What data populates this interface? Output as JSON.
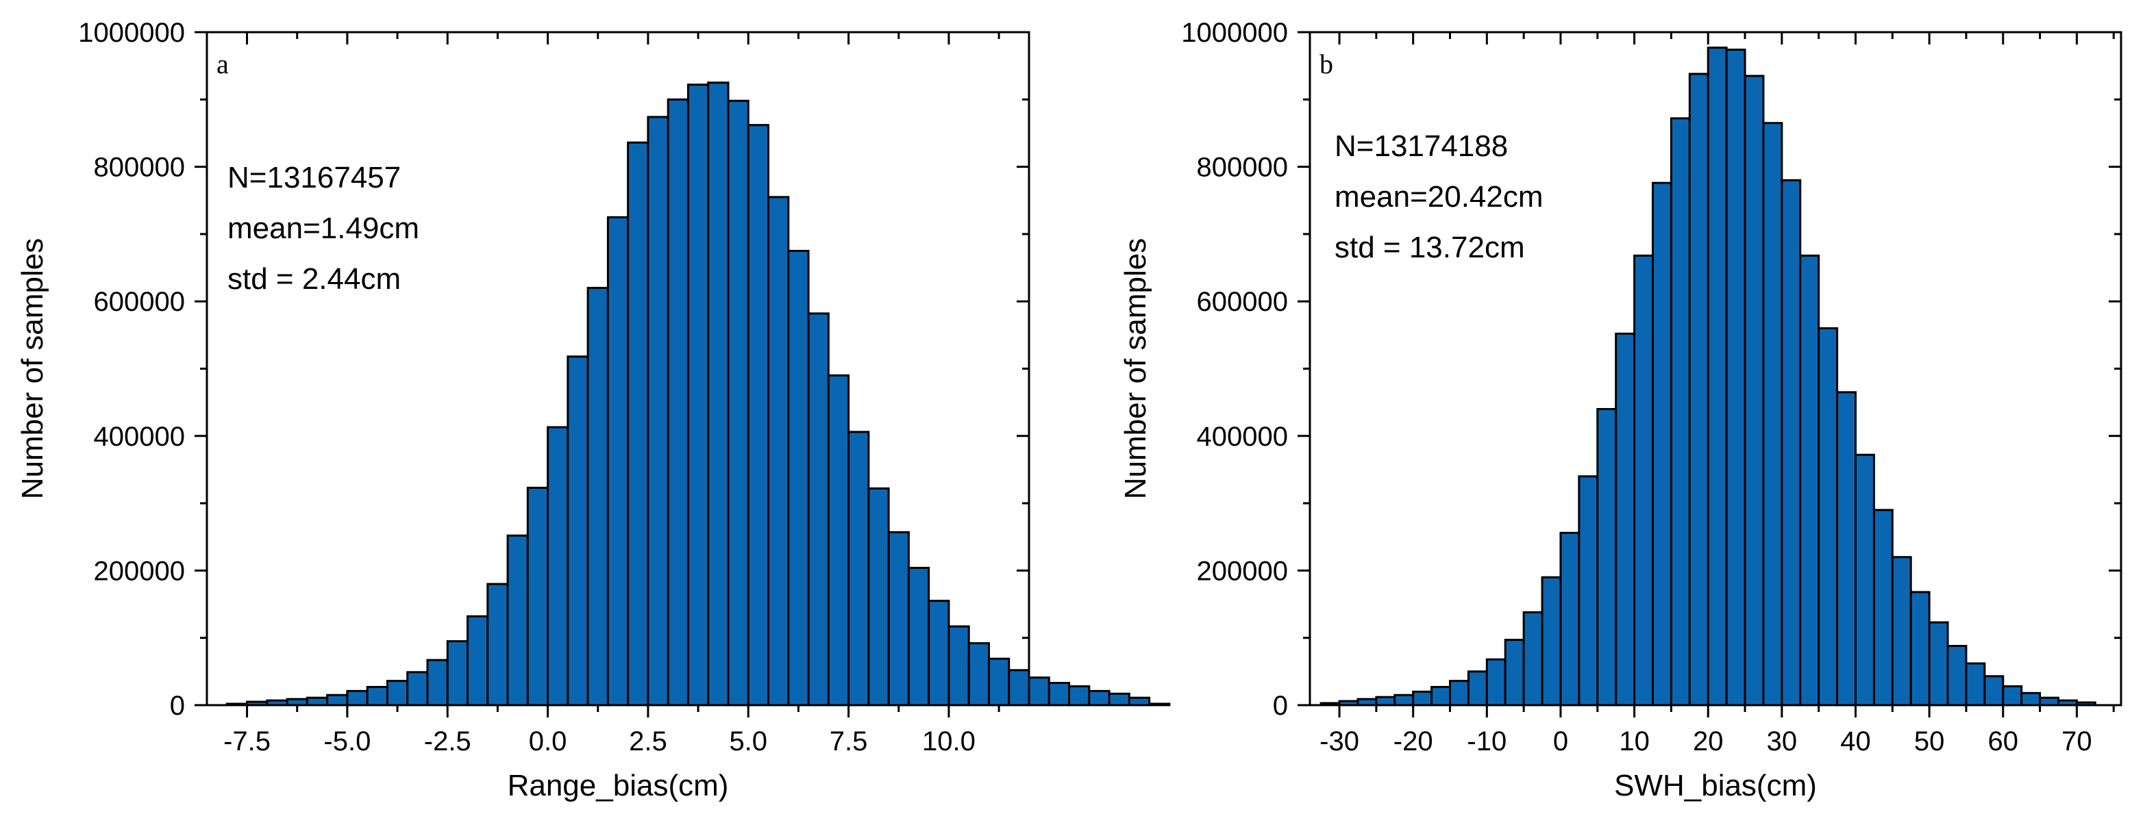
{
  "chart_data": [
    {
      "type": "bar",
      "panel_label": "a",
      "title": "",
      "xlabel": "Range_bias(cm)",
      "ylabel": "Number of samples",
      "xlim": [
        -8.5,
        12
      ],
      "ylim": [
        0,
        1000000
      ],
      "xticks": [
        -7.5,
        -5,
        -2.5,
        0,
        2.5,
        5,
        7.5,
        10
      ],
      "xtick_labels": [
        "-7.5",
        "-5.0",
        "-2.5",
        "0.0",
        "2.5",
        "5.0",
        "7.5",
        "10.0"
      ],
      "yticks": [
        0,
        200000,
        400000,
        600000,
        800000,
        1000000
      ],
      "ytick_labels": [
        "0",
        "200000",
        "400000",
        "600000",
        "800000",
        "1000000"
      ],
      "grid": false,
      "legend": null,
      "bar_color": "#0b66b2",
      "bin_width": 0.5,
      "bin_start": -8.0,
      "values": [
        2000,
        5000,
        7000,
        9000,
        11000,
        15000,
        21000,
        27000,
        36000,
        49000,
        67000,
        95000,
        132000,
        180000,
        252000,
        323000,
        413000,
        518000,
        620000,
        725000,
        836000,
        874000,
        900000,
        922000,
        925000,
        898000,
        862000,
        755000,
        675000,
        582000,
        490000,
        406000,
        322000,
        257000,
        204000,
        155000,
        117000,
        92000,
        69000,
        52000,
        41000,
        33000,
        28000,
        21000,
        17000,
        11000,
        2000
      ],
      "annotations": [
        "N=13167457",
        "mean=1.49cm",
        "std = 2.44cm"
      ]
    },
    {
      "type": "bar",
      "panel_label": "b",
      "title": "",
      "xlabel": "SWH_bias(cm)",
      "ylabel": "Number of samples",
      "xlim": [
        -34,
        76
      ],
      "ylim": [
        0,
        1000000
      ],
      "xticks": [
        -30,
        -20,
        -10,
        0,
        10,
        20,
        30,
        40,
        50,
        60,
        70
      ],
      "xtick_labels": [
        "-30",
        "-20",
        "-10",
        "0",
        "10",
        "20",
        "30",
        "40",
        "50",
        "60",
        "70"
      ],
      "yticks": [
        0,
        200000,
        400000,
        600000,
        800000,
        1000000
      ],
      "ytick_labels": [
        "0",
        "200000",
        "400000",
        "600000",
        "800000",
        "1000000"
      ],
      "grid": false,
      "legend": null,
      "bar_color": "#0b66b2",
      "bin_width": 2.5,
      "bin_start": -32.5,
      "values": [
        3000,
        6000,
        9000,
        12000,
        15000,
        20000,
        27000,
        36000,
        50000,
        68000,
        97000,
        138000,
        190000,
        256000,
        340000,
        440000,
        552000,
        668000,
        776000,
        872000,
        938000,
        977000,
        974000,
        935000,
        865000,
        780000,
        668000,
        560000,
        465000,
        372000,
        290000,
        220000,
        168000,
        123000,
        88000,
        62000,
        43000,
        28000,
        18000,
        11000,
        7000,
        4000
      ],
      "annotations": [
        "N=13174188",
        "mean=20.42cm",
        "std = 13.72cm"
      ]
    }
  ]
}
